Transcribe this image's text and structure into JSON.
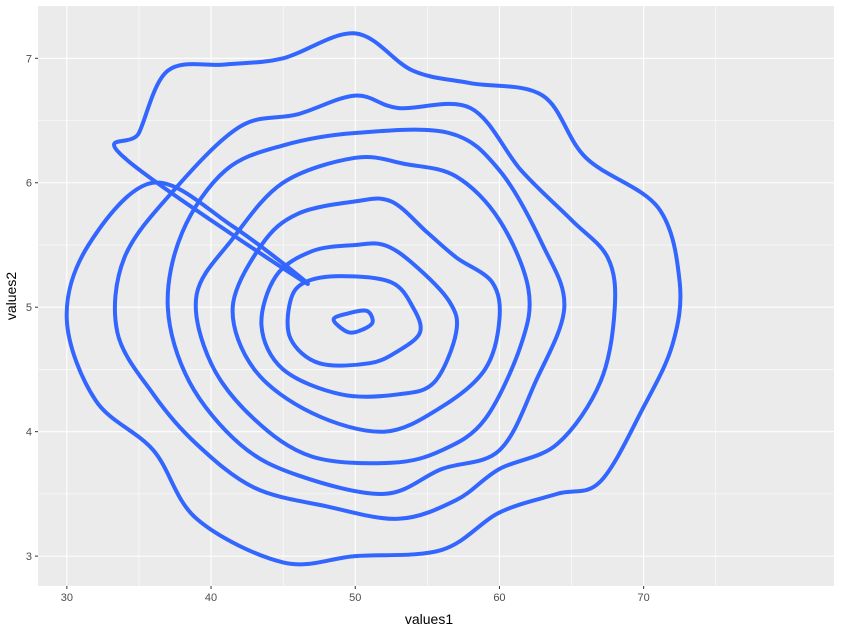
{
  "chart_data": {
    "type": "contour",
    "xlabel": "values1",
    "ylabel": "values2",
    "xlim": [
      28.0,
      83.2
    ],
    "ylim": [
      2.76,
      7.42
    ],
    "x_ticks": [
      30,
      40,
      50,
      60,
      70
    ],
    "y_ticks": [
      3,
      4,
      5,
      6,
      7
    ],
    "x_tick_labels": [
      "30",
      "40",
      "50",
      "60",
      "70"
    ],
    "y_tick_labels": [
      "3",
      "4",
      "5",
      "6",
      "7"
    ],
    "grid": true,
    "legend": "none",
    "colors": {
      "panel": "#ebebeb",
      "grid": "#ffffff",
      "line": "#3366ff"
    },
    "series": [
      {
        "points": [
          [
            46.5,
            5.2
          ],
          [
            41.5,
            5.65
          ],
          [
            36,
            6.0
          ],
          [
            31.5,
            5.5
          ],
          [
            30,
            4.9
          ],
          [
            32,
            4.25
          ],
          [
            36,
            3.85
          ],
          [
            39,
            3.3
          ],
          [
            45,
            2.95
          ],
          [
            50,
            3.0
          ],
          [
            56,
            3.05
          ],
          [
            60,
            3.35
          ],
          [
            64,
            3.5
          ],
          [
            67,
            3.6
          ],
          [
            70,
            4.2
          ],
          [
            72,
            4.7
          ],
          [
            72.5,
            5.2
          ],
          [
            71,
            5.8
          ],
          [
            66,
            6.2
          ],
          [
            63,
            6.7
          ],
          [
            58,
            6.8
          ],
          [
            54,
            6.9
          ],
          [
            50,
            7.2
          ],
          [
            45,
            7.0
          ],
          [
            41,
            6.95
          ],
          [
            37,
            6.9
          ],
          [
            35,
            6.4
          ],
          [
            34,
            6.2
          ]
        ]
      },
      {
        "points": [
          [
            50,
            6.7
          ],
          [
            46,
            6.55
          ],
          [
            42,
            6.45
          ],
          [
            37.5,
            5.95
          ],
          [
            34,
            5.4
          ],
          [
            33.5,
            4.8
          ],
          [
            36,
            4.3
          ],
          [
            39,
            3.9
          ],
          [
            43,
            3.55
          ],
          [
            48,
            3.4
          ],
          [
            53,
            3.3
          ],
          [
            57,
            3.45
          ],
          [
            60,
            3.7
          ],
          [
            64,
            3.9
          ],
          [
            67,
            4.4
          ],
          [
            68,
            5.0
          ],
          [
            67.5,
            5.4
          ],
          [
            65,
            5.7
          ],
          [
            61.5,
            6.1
          ],
          [
            58,
            6.6
          ],
          [
            53,
            6.6
          ]
        ]
      },
      {
        "points": [
          [
            50,
            6.4
          ],
          [
            45,
            6.3
          ],
          [
            41,
            6.1
          ],
          [
            38,
            5.6
          ],
          [
            37,
            5.0
          ],
          [
            38.5,
            4.4
          ],
          [
            42,
            3.9
          ],
          [
            46,
            3.65
          ],
          [
            52,
            3.5
          ],
          [
            56,
            3.7
          ],
          [
            60,
            3.85
          ],
          [
            62.5,
            4.4
          ],
          [
            64.5,
            5.0
          ],
          [
            63,
            5.5
          ],
          [
            60,
            6.1
          ],
          [
            56.5,
            6.4
          ]
        ]
      },
      {
        "points": [
          [
            50,
            6.2
          ],
          [
            45,
            6.0
          ],
          [
            41.5,
            5.55
          ],
          [
            39,
            5.1
          ],
          [
            40,
            4.55
          ],
          [
            43,
            4.1
          ],
          [
            47,
            3.8
          ],
          [
            52.5,
            3.75
          ],
          [
            56,
            3.85
          ],
          [
            59,
            4.1
          ],
          [
            61.5,
            4.7
          ],
          [
            62,
            5.15
          ],
          [
            60,
            5.7
          ],
          [
            57,
            6.05
          ],
          [
            53.5,
            6.15
          ]
        ]
      },
      {
        "points": [
          [
            50,
            5.85
          ],
          [
            46,
            5.75
          ],
          [
            43.5,
            5.5
          ],
          [
            41.5,
            5.0
          ],
          [
            43,
            4.5
          ],
          [
            47,
            4.15
          ],
          [
            52,
            4.0
          ],
          [
            56,
            4.2
          ],
          [
            59,
            4.5
          ],
          [
            60,
            4.9
          ],
          [
            59.5,
            5.2
          ],
          [
            57,
            5.4
          ],
          [
            55,
            5.6
          ],
          [
            52.5,
            5.85
          ]
        ]
      },
      {
        "points": [
          [
            50,
            5.5
          ],
          [
            47,
            5.45
          ],
          [
            44.5,
            5.25
          ],
          [
            43.5,
            4.85
          ],
          [
            45,
            4.5
          ],
          [
            49,
            4.3
          ],
          [
            53,
            4.3
          ],
          [
            55.5,
            4.4
          ],
          [
            57,
            4.8
          ],
          [
            56.5,
            5.05
          ],
          [
            54,
            5.35
          ],
          [
            52,
            5.5
          ]
        ]
      },
      {
        "points": [
          [
            49,
            5.25
          ],
          [
            46.5,
            5.2
          ],
          [
            45.5,
            5.05
          ],
          [
            45.5,
            4.75
          ],
          [
            47.5,
            4.55
          ],
          [
            51,
            4.55
          ],
          [
            53,
            4.65
          ],
          [
            54.5,
            4.8
          ],
          [
            54,
            5.0
          ],
          [
            52.5,
            5.2
          ]
        ]
      },
      {
        "points": [
          [
            49.5,
            4.95
          ],
          [
            48.5,
            4.9
          ],
          [
            49.5,
            4.8
          ],
          [
            50.5,
            4.82
          ],
          [
            51.2,
            4.88
          ],
          [
            50.8,
            4.97
          ]
        ]
      }
    ]
  }
}
